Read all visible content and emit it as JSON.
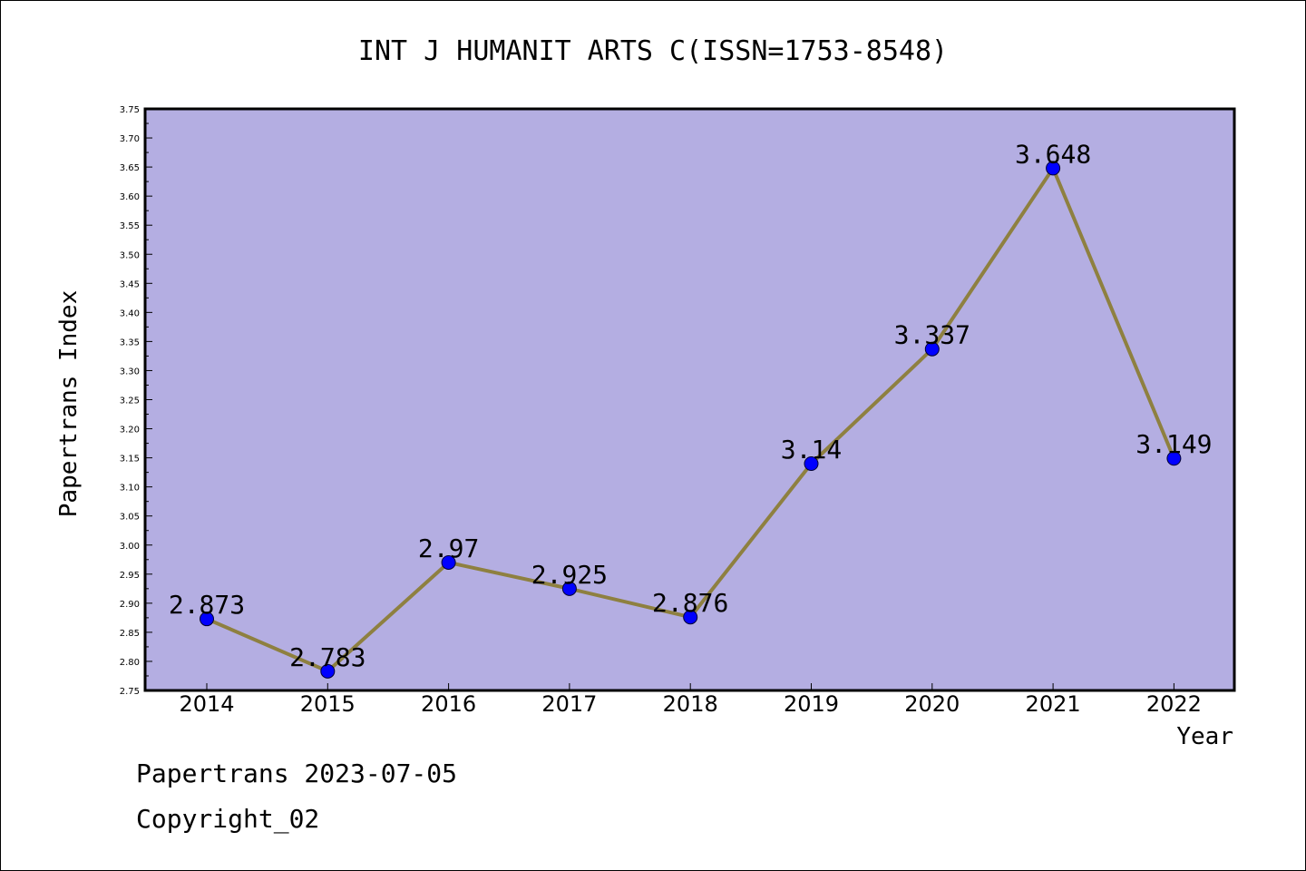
{
  "chart_data": {
    "type": "line",
    "title": "INT J HUMANIT ARTS C(ISSN=1753-8548)",
    "xlabel": "Year",
    "ylabel": "Papertrans Index",
    "categories": [
      "2014",
      "2015",
      "2016",
      "2017",
      "2018",
      "2019",
      "2020",
      "2021",
      "2022"
    ],
    "values": [
      2.873,
      2.783,
      2.97,
      2.925,
      2.876,
      3.14,
      3.337,
      3.648,
      3.149
    ],
    "data_labels": [
      "2.873",
      "2.783",
      "2.97",
      "2.925",
      "2.876",
      "3.14",
      "3.337",
      "3.648",
      "3.149"
    ],
    "ylim": [
      2.75,
      3.75
    ],
    "yticks": [
      "2.75",
      "2.80",
      "2.85",
      "2.90",
      "2.95",
      "3.00",
      "3.05",
      "3.10",
      "3.15",
      "3.20",
      "3.25",
      "3.30",
      "3.35",
      "3.40",
      "3.45",
      "3.50",
      "3.55",
      "3.60",
      "3.65",
      "3.70",
      "3.75"
    ],
    "grid": false,
    "colors": {
      "plot_background": "#b4aee2",
      "line": "#8e8040",
      "marker": "#0000ff"
    }
  },
  "footer": {
    "line1": "Papertrans 2023-07-05",
    "line2": "Copyright_02"
  }
}
